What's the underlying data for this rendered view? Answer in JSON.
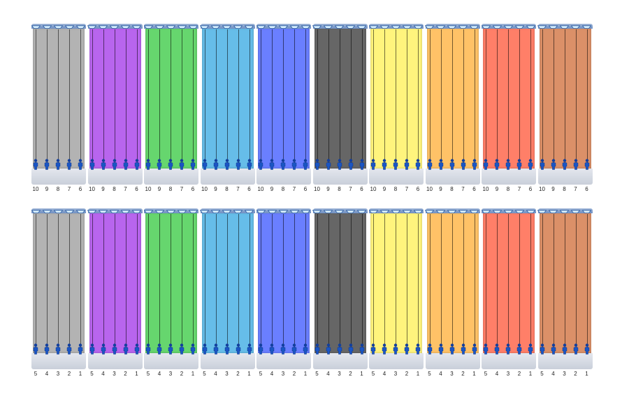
{
  "rows": [
    {
      "lane_labels": [
        "10",
        "9",
        "8",
        "7",
        "6"
      ],
      "panels": [
        {
          "color": "#b3b3b3"
        },
        {
          "color": "#b865ee"
        },
        {
          "color": "#66d66e"
        },
        {
          "color": "#66bde9"
        },
        {
          "color": "#6a7fff"
        },
        {
          "color": "#666666"
        },
        {
          "color": "#fff47d"
        },
        {
          "color": "#ffc267"
        },
        {
          "color": "#ff7f68"
        },
        {
          "color": "#db9068"
        }
      ]
    },
    {
      "lane_labels": [
        "5",
        "4",
        "3",
        "2",
        "1"
      ],
      "panels": [
        {
          "color": "#b3b3b3"
        },
        {
          "color": "#b865ee"
        },
        {
          "color": "#66d66e"
        },
        {
          "color": "#66bde9"
        },
        {
          "color": "#6a7fff"
        },
        {
          "color": "#666666"
        },
        {
          "color": "#fff47d"
        },
        {
          "color": "#ffc267"
        },
        {
          "color": "#ff7f68"
        },
        {
          "color": "#db9068"
        }
      ]
    }
  ],
  "icons": {
    "lane_top": "pool-ladder-icon",
    "lane_bottom": "swimmer-icon"
  }
}
